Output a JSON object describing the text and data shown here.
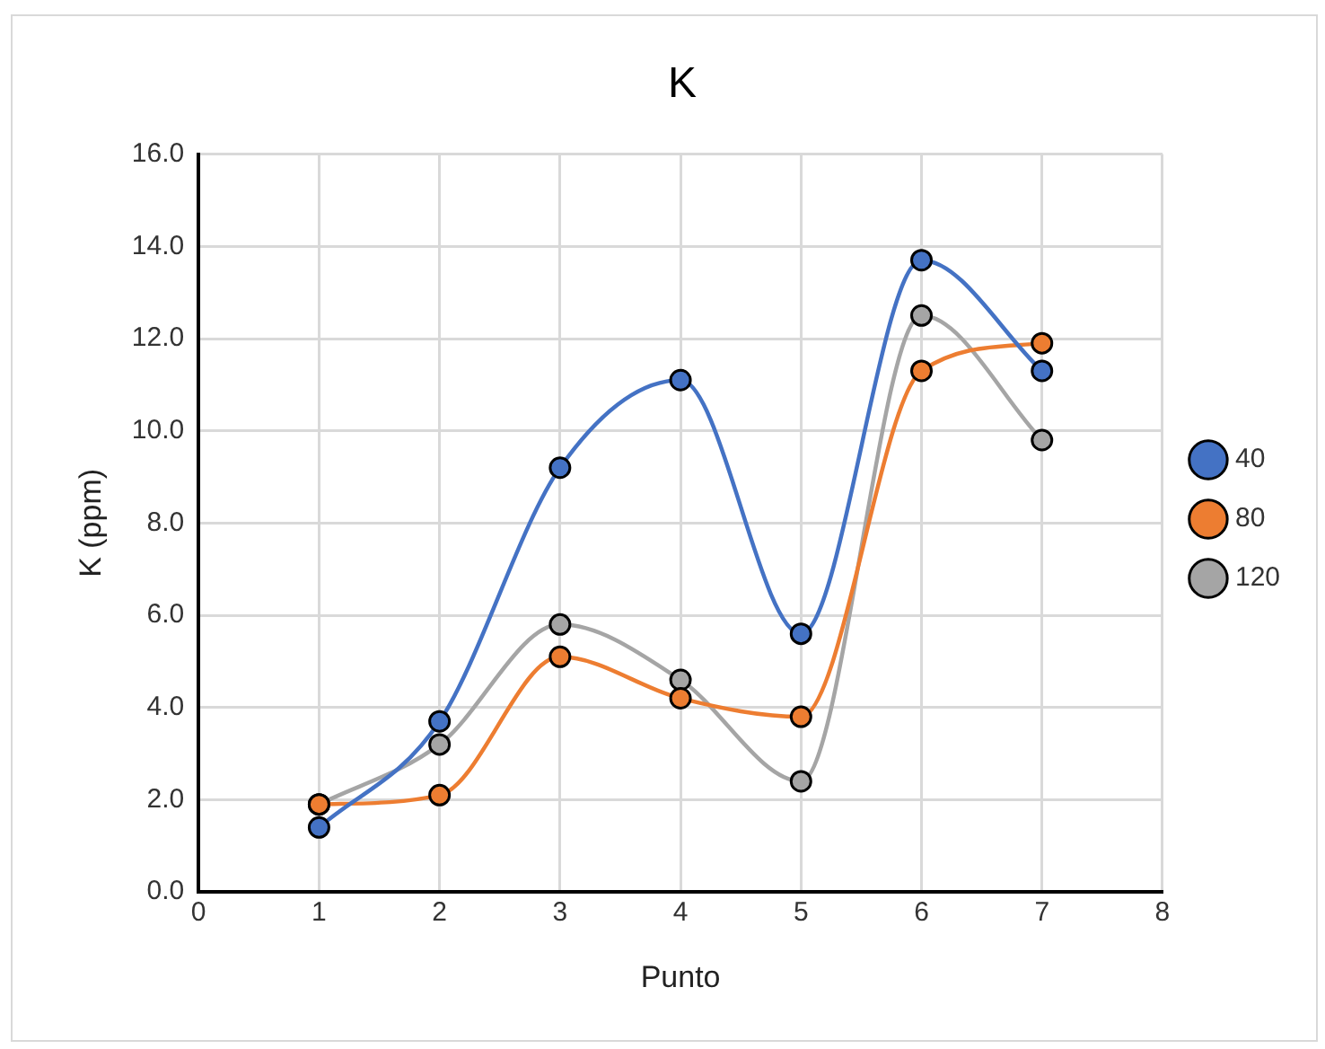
{
  "chart_data": {
    "type": "line",
    "title": "K",
    "xlabel": "Punto",
    "ylabel": "K (ppm)",
    "x": [
      1,
      2,
      3,
      4,
      5,
      6,
      7
    ],
    "series": [
      {
        "name": "40",
        "color": "#4472c4",
        "values": [
          1.4,
          3.7,
          9.2,
          11.1,
          5.6,
          13.7,
          11.3
        ]
      },
      {
        "name": "80",
        "color": "#ed7d31",
        "values": [
          1.9,
          2.1,
          5.1,
          4.2,
          3.8,
          11.3,
          11.9
        ]
      },
      {
        "name": "120",
        "color": "#a5a5a5",
        "values": [
          1.9,
          3.2,
          5.8,
          4.6,
          2.4,
          12.5,
          9.8
        ]
      }
    ],
    "xlim": [
      0,
      8
    ],
    "xticks": [
      0,
      1,
      2,
      3,
      4,
      5,
      6,
      7,
      8
    ],
    "ylim": [
      0,
      16
    ],
    "yticks": [
      {
        "value": 0,
        "label": "0.0"
      },
      {
        "value": 2,
        "label": "2.0"
      },
      {
        "value": 4,
        "label": "4.0"
      },
      {
        "value": 6,
        "label": "6.0"
      },
      {
        "value": 8,
        "label": "8.0"
      },
      {
        "value": 10,
        "label": "10.0"
      },
      {
        "value": 12,
        "label": "12.0"
      },
      {
        "value": 14,
        "label": "14.0"
      },
      {
        "value": 16,
        "label": "16.0"
      }
    ],
    "grid": true,
    "legend": "right",
    "marker": "circle",
    "line_style": "solid"
  }
}
